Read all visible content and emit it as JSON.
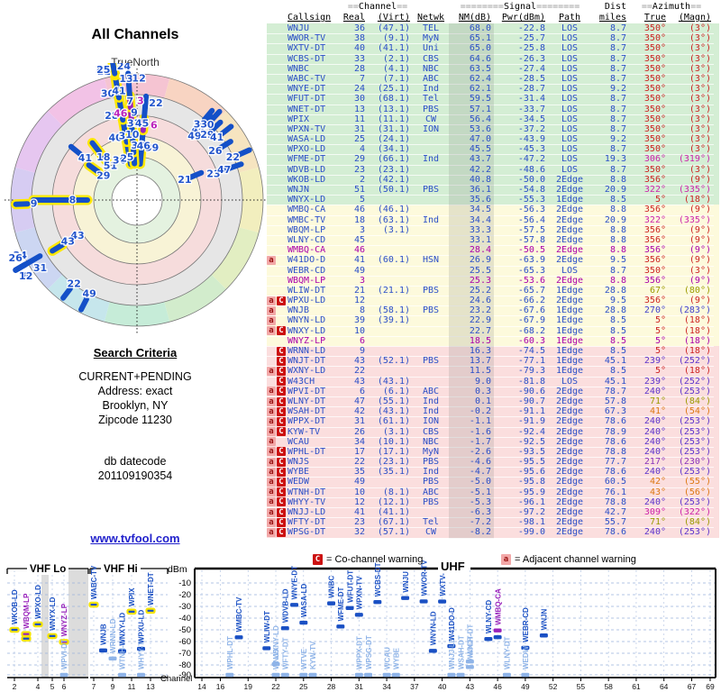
{
  "radar": {
    "title": "All Channels",
    "north_label": "TrueNorth"
  },
  "search": {
    "title": "Search Criteria",
    "mode": "CURRENT+PENDING",
    "address": "Address: exact",
    "city": "Brooklyn, NY",
    "zip": "Zipcode 11230",
    "db_label": "db datecode",
    "db_value": "201109190354"
  },
  "link": {
    "text": "www.tvfool.com"
  },
  "legend": {
    "co_symbol": "C",
    "co_text": "= Co-channel warning",
    "adj_symbol": "a",
    "adj_text": "= Adjacent channel warning"
  },
  "table": {
    "headers": {
      "channel_pre": "==",
      "channel": "Channel",
      "channel_post": "==",
      "signal_pre": "========",
      "signal": "Signal",
      "signal_post": "========",
      "dist": "Dist",
      "azimuth_pre": "==",
      "azimuth": "Azimuth",
      "azimuth_post": "==",
      "callsign": "Callsign",
      "real": "Real",
      "virt": "(Virt)",
      "netwk": "Netwk",
      "nm": "NM(dB)",
      "pwr": "Pwr(dBm)",
      "path": "Path",
      "miles": "miles",
      "true": "True",
      "magn": "(Magn)"
    }
  },
  "bands": {
    "vhf_lo": "VHF Lo",
    "vhf_hi": "VHF Hi",
    "uhf": "UHF",
    "dbm_label": "dBm",
    "channel_label": "Channel",
    "dbm_ticks": [
      -10,
      -20,
      -30,
      -40,
      -50,
      -60,
      -70,
      -80,
      -90
    ],
    "vhf_ticks": [
      2,
      4,
      5,
      6,
      7,
      9,
      11,
      13
    ],
    "uhf_ticks": [
      14,
      16,
      19,
      22,
      25,
      28,
      31,
      34,
      37,
      40,
      43,
      46,
      49,
      52,
      55,
      58,
      61,
      64,
      67,
      69
    ]
  },
  "chart_data": {
    "type": "table",
    "title": "All Channels",
    "stations": [
      {
        "callsign": "WNJU",
        "real": 36,
        "virt": "47.1",
        "netwk": "TEL",
        "nm": 68.0,
        "pwr": -22.8,
        "path": "LOS",
        "dist": 8.7,
        "azt": 350,
        "azm": 3,
        "analog": false,
        "warn": ""
      },
      {
        "callsign": "WWOR-TV",
        "real": 38,
        "virt": "9.1",
        "netwk": "MyN",
        "nm": 65.1,
        "pwr": -25.7,
        "path": "LOS",
        "dist": 8.7,
        "azt": 350,
        "azm": 3,
        "analog": false,
        "warn": ""
      },
      {
        "callsign": "WXTV-DT",
        "real": 40,
        "virt": "41.1",
        "netwk": "Uni",
        "nm": 65.0,
        "pwr": -25.8,
        "path": "LOS",
        "dist": 8.7,
        "azt": 350,
        "azm": 3,
        "analog": false,
        "warn": ""
      },
      {
        "callsign": "WCBS-DT",
        "real": 33,
        "virt": "2.1",
        "netwk": "CBS",
        "nm": 64.6,
        "pwr": -26.3,
        "path": "LOS",
        "dist": 8.7,
        "azt": 350,
        "azm": 3,
        "analog": false,
        "warn": ""
      },
      {
        "callsign": "WNBC",
        "real": 28,
        "virt": "4.1",
        "netwk": "NBC",
        "nm": 63.5,
        "pwr": -27.4,
        "path": "LOS",
        "dist": 8.7,
        "azt": 350,
        "azm": 3,
        "analog": false,
        "warn": ""
      },
      {
        "callsign": "WABC-TV",
        "real": 7,
        "virt": "7.1",
        "netwk": "ABC",
        "nm": 62.4,
        "pwr": -28.5,
        "path": "LOS",
        "dist": 8.7,
        "azt": 350,
        "azm": 3,
        "analog": false,
        "warn": ""
      },
      {
        "callsign": "WNYE-DT",
        "real": 24,
        "virt": "25.1",
        "netwk": "Ind",
        "nm": 62.1,
        "pwr": -28.7,
        "path": "LOS",
        "dist": 9.2,
        "azt": 350,
        "azm": 3,
        "analog": false,
        "warn": ""
      },
      {
        "callsign": "WFUT-DT",
        "real": 30,
        "virt": "68.1",
        "netwk": "Tel",
        "nm": 59.5,
        "pwr": -31.4,
        "path": "LOS",
        "dist": 8.7,
        "azt": 350,
        "azm": 3,
        "analog": false,
        "warn": ""
      },
      {
        "callsign": "WNET-DT",
        "real": 13,
        "virt": "13.1",
        "netwk": "PBS",
        "nm": 57.1,
        "pwr": -33.7,
        "path": "LOS",
        "dist": 8.7,
        "azt": 350,
        "azm": 3,
        "analog": false,
        "warn": ""
      },
      {
        "callsign": "WPIX",
        "real": 11,
        "virt": "11.1",
        "netwk": "CW",
        "nm": 56.4,
        "pwr": -34.5,
        "path": "LOS",
        "dist": 8.7,
        "azt": 350,
        "azm": 3,
        "analog": false,
        "warn": ""
      },
      {
        "callsign": "WPXN-TV",
        "real": 31,
        "virt": "31.1",
        "netwk": "ION",
        "nm": 53.6,
        "pwr": -37.2,
        "path": "LOS",
        "dist": 8.7,
        "azt": 350,
        "azm": 3,
        "analog": false,
        "warn": ""
      },
      {
        "callsign": "WASA-LD",
        "real": 25,
        "virt": "24.1",
        "netwk": "",
        "nm": 47.0,
        "pwr": -43.9,
        "path": "LOS",
        "dist": 9.2,
        "azt": 350,
        "azm": 3,
        "analog": false,
        "warn": ""
      },
      {
        "callsign": "WPXO-LD",
        "real": 4,
        "virt": "34.1",
        "netwk": "",
        "nm": 45.5,
        "pwr": -45.3,
        "path": "LOS",
        "dist": 8.7,
        "azt": 350,
        "azm": 3,
        "analog": false,
        "warn": ""
      },
      {
        "callsign": "WFME-DT",
        "real": 29,
        "virt": "66.1",
        "netwk": "Ind",
        "nm": 43.7,
        "pwr": -47.2,
        "path": "LOS",
        "dist": 19.3,
        "azt": 306,
        "azm": 319,
        "analog": false,
        "warn": ""
      },
      {
        "callsign": "WDVB-LD",
        "real": 23,
        "virt": "23.1",
        "netwk": "",
        "nm": 42.2,
        "pwr": -48.6,
        "path": "LOS",
        "dist": 8.7,
        "azt": 350,
        "azm": 3,
        "analog": false,
        "warn": ""
      },
      {
        "callsign": "WKOB-LD",
        "real": 2,
        "virt": "42.1",
        "netwk": "",
        "nm": 40.8,
        "pwr": -50.0,
        "path": "2Edge",
        "dist": 8.8,
        "azt": 356,
        "azm": 9,
        "analog": false,
        "warn": ""
      },
      {
        "callsign": "WNJN",
        "real": 51,
        "virt": "50.1",
        "netwk": "PBS",
        "nm": 36.1,
        "pwr": -54.8,
        "path": "2Edge",
        "dist": 20.9,
        "azt": 322,
        "azm": 335,
        "analog": false,
        "warn": ""
      },
      {
        "callsign": "WNYX-LD",
        "real": 5,
        "virt": null,
        "netwk": "",
        "nm": 35.6,
        "pwr": -55.3,
        "path": "1Edge",
        "dist": 8.5,
        "azt": 5,
        "azm": 18,
        "analog": false,
        "warn": ""
      },
      {
        "callsign": "WMBQ-CA",
        "real": 46,
        "virt": "46.1",
        "netwk": "",
        "nm": 34.5,
        "pwr": -56.3,
        "path": "2Edge",
        "dist": 8.8,
        "azt": 356,
        "azm": 9,
        "analog": false,
        "warn": ""
      },
      {
        "callsign": "WMBC-TV",
        "real": 18,
        "virt": "63.1",
        "netwk": "Ind",
        "nm": 34.4,
        "pwr": -56.4,
        "path": "2Edge",
        "dist": 20.9,
        "azt": 322,
        "azm": 335,
        "analog": false,
        "warn": ""
      },
      {
        "callsign": "WBQM-LP",
        "real": 3,
        "virt": "3.1",
        "netwk": "",
        "nm": 33.3,
        "pwr": -57.5,
        "path": "2Edge",
        "dist": 8.8,
        "azt": 356,
        "azm": 9,
        "analog": false,
        "warn": ""
      },
      {
        "callsign": "WLNY-CD",
        "real": 45,
        "virt": null,
        "netwk": "",
        "nm": 33.1,
        "pwr": -57.8,
        "path": "2Edge",
        "dist": 8.8,
        "azt": 356,
        "azm": 9,
        "analog": false,
        "warn": ""
      },
      {
        "callsign": "WMBQ-CA",
        "real": 46,
        "virt": null,
        "netwk": "",
        "nm": 28.4,
        "pwr": -50.5,
        "path": "2Edge",
        "dist": 8.8,
        "azt": 356,
        "azm": 9,
        "analog": true,
        "warn": ""
      },
      {
        "callsign": "W41DO-D",
        "real": 41,
        "virt": "60.1",
        "netwk": "HSN",
        "nm": 26.9,
        "pwr": -63.9,
        "path": "2Edge",
        "dist": 9.5,
        "azt": 356,
        "azm": 9,
        "analog": false,
        "warn": "a"
      },
      {
        "callsign": "WEBR-CD",
        "real": 49,
        "virt": null,
        "netwk": "",
        "nm": 25.5,
        "pwr": -65.3,
        "path": "LOS",
        "dist": 8.7,
        "azt": 350,
        "azm": 3,
        "analog": false,
        "warn": ""
      },
      {
        "callsign": "WBQM-LP",
        "real": 3,
        "virt": null,
        "netwk": "",
        "nm": 25.3,
        "pwr": -53.6,
        "path": "2Edge",
        "dist": 8.8,
        "azt": 356,
        "azm": 9,
        "analog": true,
        "warn": ""
      },
      {
        "callsign": "WLIW-DT",
        "real": 21,
        "virt": "21.1",
        "netwk": "PBS",
        "nm": 25.2,
        "pwr": -65.7,
        "path": "1Edge",
        "dist": 28.8,
        "azt": 67,
        "azm": 80,
        "analog": false,
        "warn": ""
      },
      {
        "callsign": "WPXU-LD",
        "real": 12,
        "virt": null,
        "netwk": "",
        "nm": 24.6,
        "pwr": -66.2,
        "path": "2Edge",
        "dist": 9.5,
        "azt": 356,
        "azm": 9,
        "analog": false,
        "warn": "aC"
      },
      {
        "callsign": "WNJB",
        "real": 8,
        "virt": "58.1",
        "netwk": "PBS",
        "nm": 23.2,
        "pwr": -67.6,
        "path": "1Edge",
        "dist": 28.8,
        "azt": 270,
        "azm": 283,
        "analog": false,
        "warn": "a"
      },
      {
        "callsign": "WNYN-LD",
        "real": 39,
        "virt": "39.1",
        "netwk": "",
        "nm": 22.9,
        "pwr": -67.9,
        "path": "1Edge",
        "dist": 8.5,
        "azt": 5,
        "azm": 18,
        "analog": false,
        "warn": "a"
      },
      {
        "callsign": "WNXY-LD",
        "real": 10,
        "virt": null,
        "netwk": "",
        "nm": 22.7,
        "pwr": -68.2,
        "path": "1Edge",
        "dist": 8.5,
        "azt": 5,
        "azm": 18,
        "analog": false,
        "warn": "aC"
      },
      {
        "callsign": "WNYZ-LP",
        "real": 6,
        "virt": null,
        "netwk": "",
        "nm": 18.5,
        "pwr": -60.3,
        "path": "1Edge",
        "dist": 8.5,
        "azt": 5,
        "azm": 18,
        "analog": true,
        "warn": ""
      },
      {
        "callsign": "WRNN-LD",
        "real": 9,
        "virt": null,
        "netwk": "",
        "nm": 16.3,
        "pwr": -74.5,
        "path": "1Edge",
        "dist": 8.5,
        "azt": 5,
        "azm": 18,
        "analog": false,
        "warn": "C"
      },
      {
        "callsign": "WNJT-DT",
        "real": 43,
        "virt": "52.1",
        "netwk": "PBS",
        "nm": 13.7,
        "pwr": -77.1,
        "path": "1Edge",
        "dist": 45.1,
        "azt": 239,
        "azm": 252,
        "analog": false,
        "warn": "C"
      },
      {
        "callsign": "WXNY-LD",
        "real": 22,
        "virt": null,
        "netwk": "",
        "nm": 11.5,
        "pwr": -79.3,
        "path": "1Edge",
        "dist": 8.5,
        "azt": 5,
        "azm": 18,
        "analog": false,
        "warn": "aC"
      },
      {
        "callsign": "W43CH",
        "real": 43,
        "virt": "43.1",
        "netwk": "",
        "nm": 9.0,
        "pwr": -81.8,
        "path": "LOS",
        "dist": 45.1,
        "azt": 239,
        "azm": 252,
        "analog": false,
        "warn": "C"
      },
      {
        "callsign": "WPVI-DT",
        "real": 6,
        "virt": "6.1",
        "netwk": "ABC",
        "nm": 0.3,
        "pwr": -90.6,
        "path": "2Edge",
        "dist": 78.7,
        "azt": 240,
        "azm": 253,
        "analog": false,
        "warn": "aC"
      },
      {
        "callsign": "WLNY-DT",
        "real": 47,
        "virt": "55.1",
        "netwk": "Ind",
        "nm": 0.1,
        "pwr": -90.7,
        "path": "2Edge",
        "dist": 57.8,
        "azt": 71,
        "azm": 84,
        "analog": false,
        "warn": "aC"
      },
      {
        "callsign": "WSAH-DT",
        "real": 42,
        "virt": "43.1",
        "netwk": "Ind",
        "nm": -0.2,
        "pwr": -91.1,
        "path": "2Edge",
        "dist": 67.3,
        "azt": 41,
        "azm": 54,
        "analog": false,
        "warn": "aC"
      },
      {
        "callsign": "WPPX-DT",
        "real": 31,
        "virt": "61.1",
        "netwk": "ION",
        "nm": -1.1,
        "pwr": -91.9,
        "path": "2Edge",
        "dist": 78.6,
        "azt": 240,
        "azm": 253,
        "analog": false,
        "warn": "aC"
      },
      {
        "callsign": "KYW-TV",
        "real": 26,
        "virt": "3.1",
        "netwk": "CBS",
        "nm": -1.6,
        "pwr": -92.4,
        "path": "2Edge",
        "dist": 78.9,
        "azt": 240,
        "azm": 253,
        "analog": false,
        "warn": "aC"
      },
      {
        "callsign": "WCAU",
        "real": 34,
        "virt": "10.1",
        "netwk": "NBC",
        "nm": -1.7,
        "pwr": -92.5,
        "path": "2Edge",
        "dist": 78.6,
        "azt": 240,
        "azm": 253,
        "analog": false,
        "warn": "a"
      },
      {
        "callsign": "WPHL-DT",
        "real": 17,
        "virt": "17.1",
        "netwk": "MyN",
        "nm": -2.6,
        "pwr": -93.5,
        "path": "2Edge",
        "dist": 78.8,
        "azt": 240,
        "azm": 253,
        "analog": false,
        "warn": "aC"
      },
      {
        "callsign": "WNJS",
        "real": 22,
        "virt": "23.1",
        "netwk": "PBS",
        "nm": -4.6,
        "pwr": -95.5,
        "path": "2Edge",
        "dist": 77.7,
        "azt": 217,
        "azm": 230,
        "analog": false,
        "warn": "aC"
      },
      {
        "callsign": "WYBE",
        "real": 35,
        "virt": "35.1",
        "netwk": "Ind",
        "nm": -4.7,
        "pwr": -95.6,
        "path": "2Edge",
        "dist": 78.6,
        "azt": 240,
        "azm": 253,
        "analog": false,
        "warn": "aC"
      },
      {
        "callsign": "WEDW",
        "real": 49,
        "virt": null,
        "netwk": "PBS",
        "nm": -5.0,
        "pwr": -95.8,
        "path": "2Edge",
        "dist": 60.5,
        "azt": 42,
        "azm": 55,
        "analog": false,
        "warn": "aC"
      },
      {
        "callsign": "WTNH-DT",
        "real": 10,
        "virt": "8.1",
        "netwk": "ABC",
        "nm": -5.1,
        "pwr": -95.9,
        "path": "2Edge",
        "dist": 76.1,
        "azt": 43,
        "azm": 56,
        "analog": false,
        "warn": "aC"
      },
      {
        "callsign": "WHYY-TV",
        "real": 12,
        "virt": "12.1",
        "netwk": "PBS",
        "nm": -5.3,
        "pwr": -96.1,
        "path": "2Edge",
        "dist": 78.8,
        "azt": 240,
        "azm": 253,
        "analog": false,
        "warn": "aC"
      },
      {
        "callsign": "WNJJ-LD",
        "real": 41,
        "virt": "41.1",
        "netwk": "",
        "nm": -6.3,
        "pwr": -97.2,
        "path": "2Edge",
        "dist": 42.7,
        "azt": 309,
        "azm": 322,
        "analog": false,
        "warn": "aC"
      },
      {
        "callsign": "WFTY-DT",
        "real": 23,
        "virt": "67.1",
        "netwk": "Tel",
        "nm": -7.2,
        "pwr": -98.1,
        "path": "2Edge",
        "dist": 55.7,
        "azt": 71,
        "azm": 84,
        "analog": false,
        "warn": "aC"
      },
      {
        "callsign": "WPSG-DT",
        "real": 32,
        "virt": "57.1",
        "netwk": "CW",
        "nm": -8.2,
        "pwr": -99.0,
        "path": "2Edge",
        "dist": 78.6,
        "azt": 240,
        "azm": 253,
        "analog": false,
        "warn": "aC"
      }
    ],
    "polar_extra_markers": [
      {
        "label": "9",
        "az": 268,
        "r": 128,
        "highlight": true
      },
      {
        "label": "33",
        "az": 40,
        "r": 123,
        "highlight": false
      },
      {
        "label": "29",
        "az": 47,
        "r": 120,
        "highlight": false
      },
      {
        "label": "41",
        "az": 52,
        "r": 126,
        "highlight": false
      },
      {
        "label": "26",
        "az": 58,
        "r": 116,
        "highlight": false
      },
      {
        "label": "22",
        "az": 66,
        "r": 130,
        "highlight": false
      },
      {
        "label": "49",
        "az": 207,
        "r": 130,
        "highlight": false
      }
    ],
    "band_extra_stations": [
      {
        "callsign": "WTVE",
        "channel": 25,
        "pwr": -93.0
      }
    ]
  }
}
